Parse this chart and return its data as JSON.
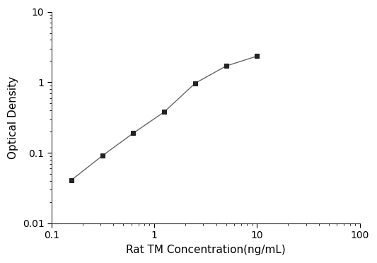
{
  "x": [
    0.156,
    0.3125,
    0.625,
    1.25,
    2.5,
    5.0,
    10.0
  ],
  "y": [
    0.041,
    0.091,
    0.19,
    0.38,
    0.97,
    1.7,
    2.35
  ],
  "xlabel": "Rat TM Concentration(ng/mL)",
  "ylabel": "Optical Density",
  "xlim": [
    0.1,
    100
  ],
  "ylim": [
    0.01,
    10
  ],
  "x_ticks": [
    0.1,
    1,
    10,
    100
  ],
  "x_tick_labels": [
    "0.1",
    "1",
    "10",
    "100"
  ],
  "y_ticks": [
    0.01,
    0.1,
    1,
    10
  ],
  "y_tick_labels": [
    "0.01",
    "0.1",
    "1",
    "10"
  ],
  "line_color": "#666666",
  "marker": "s",
  "marker_facecolor": "#222222",
  "marker_edgecolor": "#222222",
  "marker_size": 5,
  "line_width": 1.0,
  "background_color": "#ffffff",
  "xlabel_fontsize": 11,
  "ylabel_fontsize": 11,
  "tick_fontsize": 10,
  "fig_width": 5.33,
  "fig_height": 3.72,
  "dpi": 100
}
